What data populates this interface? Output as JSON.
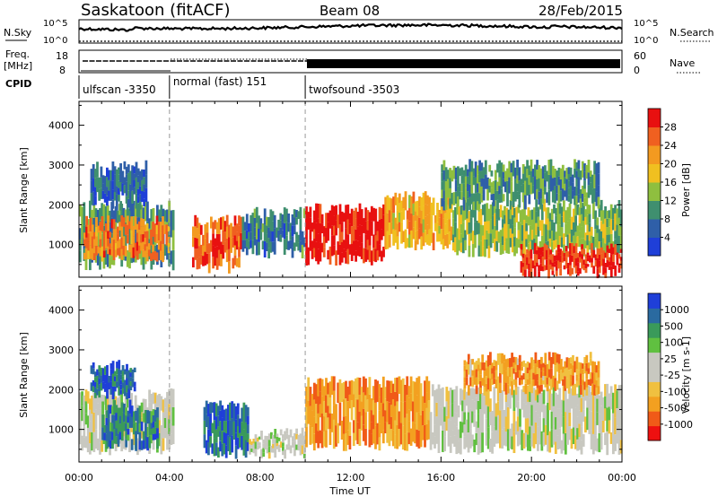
{
  "header": {
    "title": "Saskatoon (fitACF)",
    "beam": "Beam 08",
    "date": "28/Feb/2015"
  },
  "nsky_panel": {
    "left_label": "N.Sky",
    "left_ticks": [
      "10^5",
      "10^0"
    ],
    "right_label": "N.Search",
    "right_ticks": [
      "10^5",
      "10^0"
    ]
  },
  "freq_panel": {
    "left_label_1": "Freq.",
    "left_label_2": "[MHz]",
    "left_ticks": [
      "18",
      "8"
    ],
    "right_label": "Nave",
    "right_ticks": [
      "60",
      "0"
    ]
  },
  "cpid": {
    "label": "CPID",
    "segments": [
      {
        "text": "ulfscan -3350",
        "start_hour": 0.0
      },
      {
        "text": "normal (fast) 151",
        "start_hour": 4.0
      },
      {
        "text": "twofsound -3503",
        "start_hour": 10.0
      }
    ]
  },
  "colors": {
    "power_scale": [
      "#1f3fd8",
      "#2f5fa8",
      "#3f8f6f",
      "#8fbf3f",
      "#f0c020",
      "#f39a20",
      "#f06020",
      "#e81010"
    ],
    "velocity_scale": [
      "#ee1010",
      "#f05a18",
      "#f3a020",
      "#f0c040",
      "#c8c8c0",
      "#c8c8c0",
      "#60c040",
      "#3a9a5a",
      "#2a6aa0",
      "#1f3fd8"
    ]
  },
  "chart_data": [
    {
      "type": "heatmap",
      "name": "power",
      "ylabel": "Slant Range [km]",
      "xlabel": "",
      "xlim": [
        0,
        24
      ],
      "ylim": [
        180,
        4600
      ],
      "y_ticks": [
        "1000",
        "2000",
        "3000",
        "4000"
      ],
      "y_tick_values": [
        1000,
        2000,
        3000,
        4000
      ],
      "colorbar_label": "Power [dB]",
      "colorbar_ticks": [
        "4",
        "8",
        "12",
        "16",
        "20",
        "24",
        "28"
      ],
      "colorbar_range": [
        0,
        32
      ],
      "regions": [
        {
          "t0": 0.0,
          "t1": 4.2,
          "r0": 500,
          "r1": 2000,
          "value": 10
        },
        {
          "t0": 0.2,
          "t1": 4.0,
          "r0": 700,
          "r1": 1600,
          "value": 24
        },
        {
          "t0": 0.5,
          "t1": 3.0,
          "r0": 2000,
          "r1": 3000,
          "value": 6
        },
        {
          "t0": 5.0,
          "t1": 7.2,
          "r0": 400,
          "r1": 1600,
          "value": 26
        },
        {
          "t0": 7.2,
          "t1": 10.0,
          "r0": 800,
          "r1": 1800,
          "value": 8
        },
        {
          "t0": 10.0,
          "t1": 13.5,
          "r0": 600,
          "r1": 1900,
          "value": 30
        },
        {
          "t0": 13.5,
          "t1": 16.5,
          "r0": 1000,
          "r1": 2200,
          "value": 20
        },
        {
          "t0": 16.5,
          "t1": 24.0,
          "r0": 800,
          "r1": 2000,
          "value": 14
        },
        {
          "t0": 19.5,
          "t1": 24.0,
          "r0": 300,
          "r1": 900,
          "value": 29
        },
        {
          "t0": 16.0,
          "t1": 23.0,
          "r0": 2000,
          "r1": 3000,
          "value": 10
        }
      ]
    },
    {
      "type": "heatmap",
      "name": "velocity",
      "ylabel": "Slant Range [km]",
      "xlabel": "Time UT",
      "xlim": [
        0,
        24
      ],
      "ylim": [
        180,
        4600
      ],
      "x_ticks": [
        "00:00",
        "04:00",
        "08:00",
        "12:00",
        "16:00",
        "20:00",
        "00:00"
      ],
      "x_tick_values": [
        0,
        4,
        8,
        12,
        16,
        20,
        24
      ],
      "y_ticks": [
        "1000",
        "2000",
        "3000",
        "4000"
      ],
      "y_tick_values": [
        1000,
        2000,
        3000,
        4000
      ],
      "colorbar_label": "Velocity [m s-1]",
      "colorbar_ticks": [
        "-1000",
        "-500",
        "-100",
        "-25",
        "25",
        "100",
        "500",
        "1000"
      ],
      "regions": [
        {
          "t0": 0.0,
          "t1": 4.2,
          "r0": 500,
          "r1": 1900,
          "value": 0
        },
        {
          "t0": 1.0,
          "t1": 3.5,
          "r0": 600,
          "r1": 1600,
          "value": 200
        },
        {
          "t0": 0.5,
          "t1": 2.5,
          "r0": 1900,
          "r1": 2600,
          "value": 400
        },
        {
          "t0": 5.5,
          "t1": 7.5,
          "r0": 400,
          "r1": 1600,
          "value": 300
        },
        {
          "t0": 7.5,
          "t1": 10.0,
          "r0": 400,
          "r1": 900,
          "value": 0
        },
        {
          "t0": 10.0,
          "t1": 15.5,
          "r0": 600,
          "r1": 2200,
          "value": -150
        },
        {
          "t0": 15.5,
          "t1": 24.0,
          "r0": 500,
          "r1": 2000,
          "value": 0
        },
        {
          "t0": 17.0,
          "t1": 23.0,
          "r0": 2000,
          "r1": 2800,
          "value": -120
        }
      ]
    }
  ]
}
